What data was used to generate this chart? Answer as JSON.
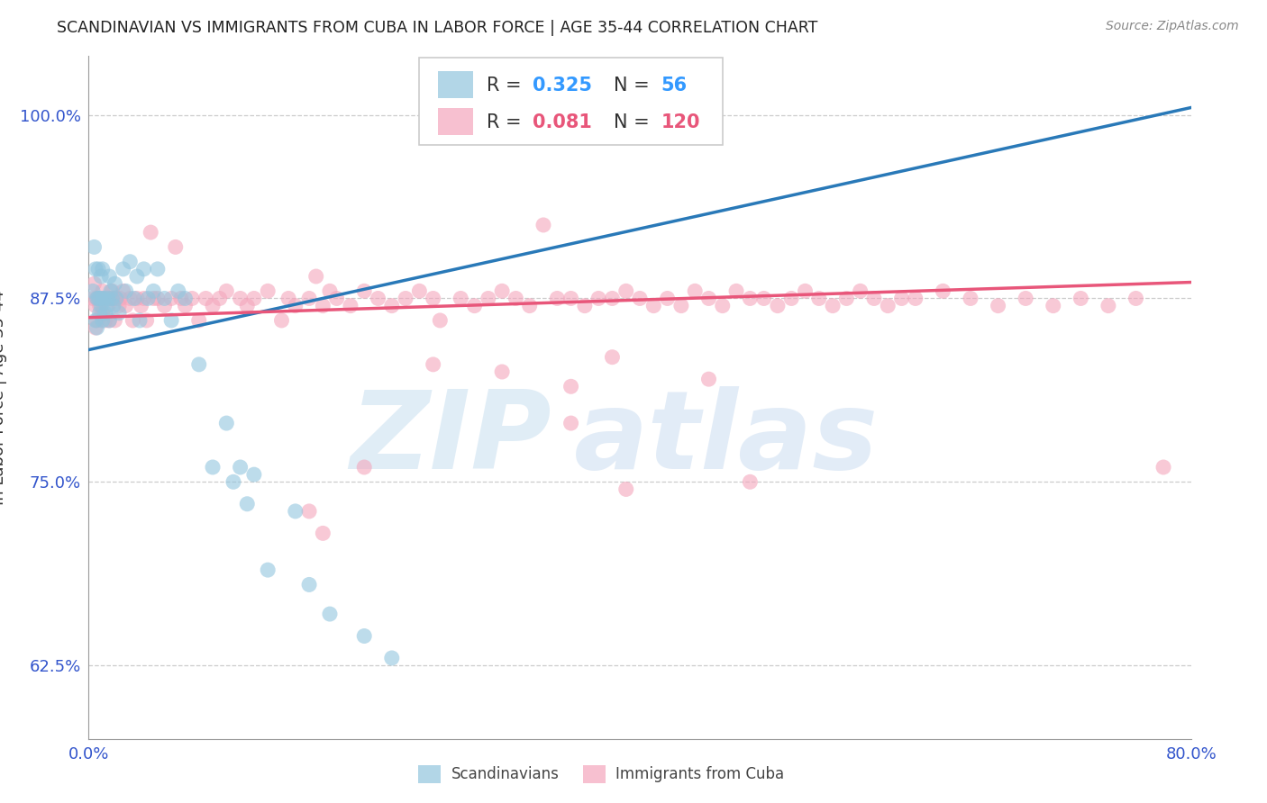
{
  "title": "SCANDINAVIAN VS IMMIGRANTS FROM CUBA IN LABOR FORCE | AGE 35-44 CORRELATION CHART",
  "source": "Source: ZipAtlas.com",
  "ylabel": "In Labor Force | Age 35-44",
  "xlim": [
    0.0,
    0.8
  ],
  "ylim": [
    0.575,
    1.04
  ],
  "xticks": [
    0.0,
    0.1,
    0.2,
    0.3,
    0.4,
    0.5,
    0.6,
    0.7,
    0.8
  ],
  "xticklabels": [
    "0.0%",
    "",
    "",
    "",
    "",
    "",
    "",
    "",
    "80.0%"
  ],
  "yticks": [
    0.625,
    0.75,
    0.875,
    1.0
  ],
  "yticklabels": [
    "62.5%",
    "75.0%",
    "87.5%",
    "100.0%"
  ],
  "R_blue": 0.325,
  "N_blue": 56,
  "R_pink": 0.081,
  "N_pink": 120,
  "blue_color": "#92c5de",
  "pink_color": "#f4a6bc",
  "blue_line_color": "#2979b8",
  "pink_line_color": "#e8567a",
  "watermark_zip": "ZIP",
  "watermark_atlas": "atlas",
  "legend_blue": "Scandinavians",
  "legend_pink": "Immigrants from Cuba",
  "blue_scatter": [
    [
      0.003,
      0.88
    ],
    [
      0.004,
      0.91
    ],
    [
      0.005,
      0.86
    ],
    [
      0.005,
      0.895
    ],
    [
      0.006,
      0.875
    ],
    [
      0.006,
      0.855
    ],
    [
      0.007,
      0.875
    ],
    [
      0.007,
      0.895
    ],
    [
      0.008,
      0.865
    ],
    [
      0.008,
      0.875
    ],
    [
      0.009,
      0.87
    ],
    [
      0.009,
      0.89
    ],
    [
      0.01,
      0.875
    ],
    [
      0.01,
      0.86
    ],
    [
      0.01,
      0.895
    ],
    [
      0.011,
      0.875
    ],
    [
      0.012,
      0.865
    ],
    [
      0.013,
      0.87
    ],
    [
      0.014,
      0.875
    ],
    [
      0.015,
      0.86
    ],
    [
      0.015,
      0.89
    ],
    [
      0.016,
      0.88
    ],
    [
      0.017,
      0.875
    ],
    [
      0.018,
      0.87
    ],
    [
      0.019,
      0.885
    ],
    [
      0.02,
      0.875
    ],
    [
      0.022,
      0.865
    ],
    [
      0.025,
      0.895
    ],
    [
      0.027,
      0.88
    ],
    [
      0.03,
      0.9
    ],
    [
      0.033,
      0.875
    ],
    [
      0.035,
      0.89
    ],
    [
      0.037,
      0.86
    ],
    [
      0.04,
      0.895
    ],
    [
      0.043,
      0.875
    ],
    [
      0.047,
      0.88
    ],
    [
      0.05,
      0.895
    ],
    [
      0.055,
      0.875
    ],
    [
      0.06,
      0.86
    ],
    [
      0.065,
      0.88
    ],
    [
      0.07,
      0.875
    ],
    [
      0.08,
      0.83
    ],
    [
      0.09,
      0.76
    ],
    [
      0.1,
      0.79
    ],
    [
      0.105,
      0.75
    ],
    [
      0.11,
      0.76
    ],
    [
      0.115,
      0.735
    ],
    [
      0.12,
      0.755
    ],
    [
      0.13,
      0.69
    ],
    [
      0.15,
      0.73
    ],
    [
      0.16,
      0.68
    ],
    [
      0.175,
      0.66
    ],
    [
      0.2,
      0.645
    ],
    [
      0.22,
      0.63
    ],
    [
      0.25,
      1.0
    ],
    [
      0.27,
      1.0
    ]
  ],
  "pink_scatter": [
    [
      0.003,
      0.875
    ],
    [
      0.004,
      0.885
    ],
    [
      0.005,
      0.87
    ],
    [
      0.005,
      0.855
    ],
    [
      0.006,
      0.875
    ],
    [
      0.006,
      0.86
    ],
    [
      0.007,
      0.875
    ],
    [
      0.008,
      0.87
    ],
    [
      0.009,
      0.875
    ],
    [
      0.01,
      0.865
    ],
    [
      0.01,
      0.88
    ],
    [
      0.011,
      0.875
    ],
    [
      0.012,
      0.86
    ],
    [
      0.013,
      0.875
    ],
    [
      0.014,
      0.87
    ],
    [
      0.015,
      0.875
    ],
    [
      0.015,
      0.86
    ],
    [
      0.016,
      0.875
    ],
    [
      0.017,
      0.88
    ],
    [
      0.018,
      0.875
    ],
    [
      0.019,
      0.86
    ],
    [
      0.02,
      0.875
    ],
    [
      0.022,
      0.87
    ],
    [
      0.023,
      0.875
    ],
    [
      0.025,
      0.88
    ],
    [
      0.027,
      0.87
    ],
    [
      0.03,
      0.875
    ],
    [
      0.032,
      0.86
    ],
    [
      0.035,
      0.875
    ],
    [
      0.038,
      0.87
    ],
    [
      0.04,
      0.875
    ],
    [
      0.042,
      0.86
    ],
    [
      0.045,
      0.92
    ],
    [
      0.047,
      0.875
    ],
    [
      0.05,
      0.875
    ],
    [
      0.055,
      0.87
    ],
    [
      0.06,
      0.875
    ],
    [
      0.063,
      0.91
    ],
    [
      0.067,
      0.875
    ],
    [
      0.07,
      0.87
    ],
    [
      0.075,
      0.875
    ],
    [
      0.08,
      0.86
    ],
    [
      0.085,
      0.875
    ],
    [
      0.09,
      0.87
    ],
    [
      0.095,
      0.875
    ],
    [
      0.1,
      0.88
    ],
    [
      0.11,
      0.875
    ],
    [
      0.115,
      0.87
    ],
    [
      0.12,
      0.875
    ],
    [
      0.13,
      0.88
    ],
    [
      0.14,
      0.86
    ],
    [
      0.145,
      0.875
    ],
    [
      0.15,
      0.87
    ],
    [
      0.16,
      0.875
    ],
    [
      0.165,
      0.89
    ],
    [
      0.17,
      0.87
    ],
    [
      0.175,
      0.88
    ],
    [
      0.18,
      0.875
    ],
    [
      0.19,
      0.87
    ],
    [
      0.2,
      0.88
    ],
    [
      0.21,
      0.875
    ],
    [
      0.22,
      0.87
    ],
    [
      0.23,
      0.875
    ],
    [
      0.24,
      0.88
    ],
    [
      0.25,
      0.875
    ],
    [
      0.255,
      0.86
    ],
    [
      0.27,
      0.875
    ],
    [
      0.28,
      0.87
    ],
    [
      0.29,
      0.875
    ],
    [
      0.3,
      0.88
    ],
    [
      0.31,
      0.875
    ],
    [
      0.32,
      0.87
    ],
    [
      0.33,
      0.925
    ],
    [
      0.34,
      0.875
    ],
    [
      0.35,
      0.875
    ],
    [
      0.36,
      0.87
    ],
    [
      0.37,
      0.875
    ],
    [
      0.38,
      0.875
    ],
    [
      0.39,
      0.88
    ],
    [
      0.4,
      0.875
    ],
    [
      0.41,
      0.87
    ],
    [
      0.42,
      0.875
    ],
    [
      0.43,
      0.87
    ],
    [
      0.44,
      0.88
    ],
    [
      0.45,
      0.875
    ],
    [
      0.46,
      0.87
    ],
    [
      0.47,
      0.88
    ],
    [
      0.48,
      0.875
    ],
    [
      0.49,
      0.875
    ],
    [
      0.5,
      0.87
    ],
    [
      0.51,
      0.875
    ],
    [
      0.52,
      0.88
    ],
    [
      0.53,
      0.875
    ],
    [
      0.54,
      0.87
    ],
    [
      0.55,
      0.875
    ],
    [
      0.56,
      0.88
    ],
    [
      0.57,
      0.875
    ],
    [
      0.58,
      0.87
    ],
    [
      0.59,
      0.875
    ],
    [
      0.6,
      0.875
    ],
    [
      0.62,
      0.88
    ],
    [
      0.64,
      0.875
    ],
    [
      0.66,
      0.87
    ],
    [
      0.68,
      0.875
    ],
    [
      0.7,
      0.87
    ],
    [
      0.72,
      0.875
    ],
    [
      0.74,
      0.87
    ],
    [
      0.76,
      0.875
    ],
    [
      0.78,
      0.76
    ],
    [
      0.48,
      0.75
    ],
    [
      0.39,
      0.745
    ],
    [
      0.35,
      0.815
    ],
    [
      0.45,
      0.82
    ],
    [
      0.25,
      0.83
    ],
    [
      0.3,
      0.825
    ],
    [
      0.2,
      0.76
    ],
    [
      0.16,
      0.73
    ],
    [
      0.17,
      0.715
    ],
    [
      0.35,
      0.79
    ],
    [
      0.38,
      0.835
    ]
  ],
  "blue_line_x": [
    0.0,
    0.8
  ],
  "blue_line_y": [
    0.84,
    1.005
  ],
  "pink_line_x": [
    0.0,
    0.8
  ],
  "pink_line_y": [
    0.862,
    0.886
  ]
}
